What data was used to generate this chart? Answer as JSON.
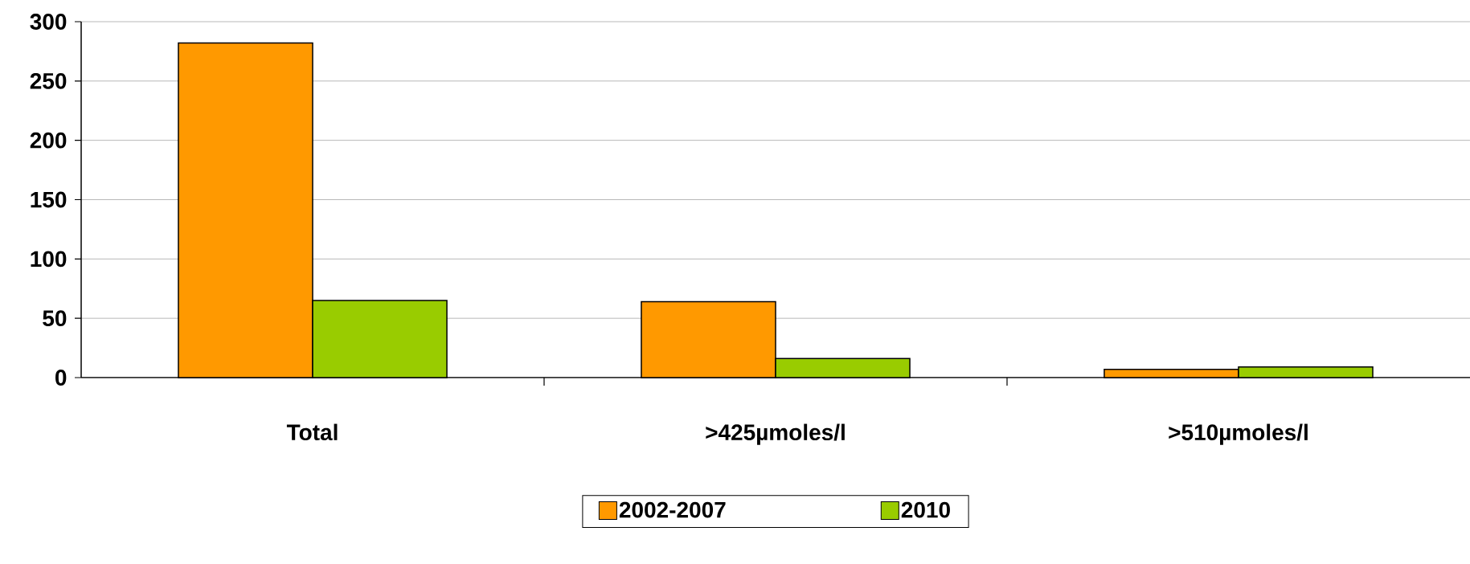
{
  "chart_data": {
    "type": "bar",
    "categories": [
      "Total",
      ">425µmoles/l",
      ">510µmoles/l"
    ],
    "series": [
      {
        "name": "2002-2007",
        "color": "#ff9900",
        "values": [
          282,
          64,
          7
        ]
      },
      {
        "name": "2010",
        "color": "#99cc00",
        "values": [
          65,
          16,
          9
        ]
      }
    ],
    "ylim": [
      0,
      300
    ],
    "yticks": [
      0,
      50,
      100,
      150,
      200,
      250,
      300
    ],
    "grid": "y",
    "legend": "bottom"
  }
}
